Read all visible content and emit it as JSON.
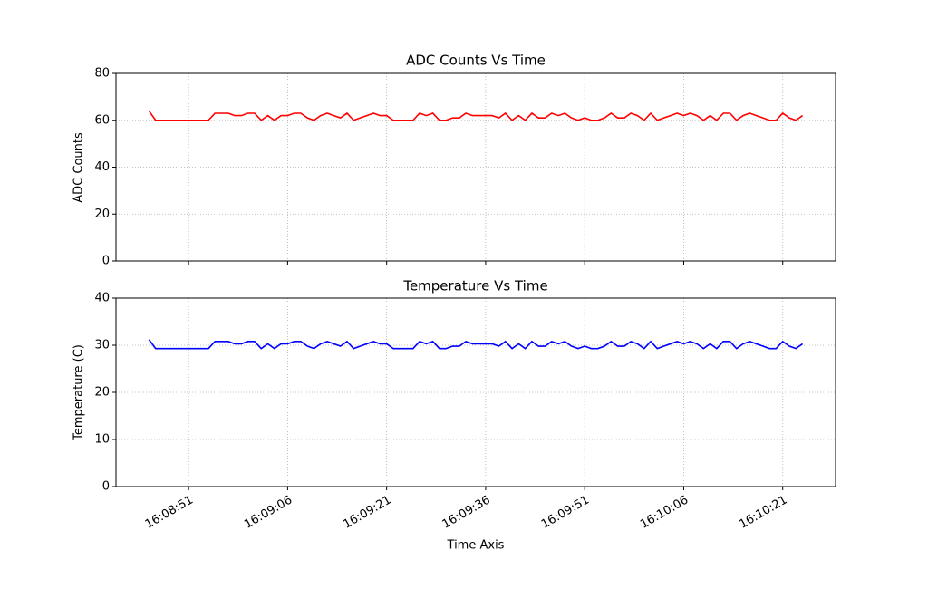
{
  "chart_data": [
    {
      "type": "line",
      "title": "ADC Counts Vs Time",
      "ylabel": "ADC Counts",
      "color": "#ff0000",
      "grid": true,
      "x": [
        "16:08:45",
        "16:08:46",
        "16:08:47",
        "16:08:48",
        "16:08:49",
        "16:08:50",
        "16:08:51",
        "16:08:52",
        "16:08:53",
        "16:08:54",
        "16:08:55",
        "16:08:56",
        "16:08:57",
        "16:08:58",
        "16:08:59",
        "16:09:00",
        "16:09:01",
        "16:09:02",
        "16:09:03",
        "16:09:04",
        "16:09:05",
        "16:09:06",
        "16:09:07",
        "16:09:08",
        "16:09:09",
        "16:09:10",
        "16:09:11",
        "16:09:12",
        "16:09:13",
        "16:09:14",
        "16:09:15",
        "16:09:16",
        "16:09:17",
        "16:09:18",
        "16:09:19",
        "16:09:20",
        "16:09:21",
        "16:09:22",
        "16:09:23",
        "16:09:24",
        "16:09:25",
        "16:09:26",
        "16:09:27",
        "16:09:28",
        "16:09:29",
        "16:09:30",
        "16:09:31",
        "16:09:32",
        "16:09:33",
        "16:09:34",
        "16:09:35",
        "16:09:36",
        "16:09:37",
        "16:09:38",
        "16:09:39",
        "16:09:40",
        "16:09:41",
        "16:09:42",
        "16:09:43",
        "16:09:44",
        "16:09:45",
        "16:09:46",
        "16:09:47",
        "16:09:48",
        "16:09:49",
        "16:09:50",
        "16:09:51",
        "16:09:52",
        "16:09:53",
        "16:09:54",
        "16:09:55",
        "16:09:56",
        "16:09:57",
        "16:09:58",
        "16:09:59",
        "16:10:00",
        "16:10:01",
        "16:10:02",
        "16:10:03",
        "16:10:04",
        "16:10:05",
        "16:10:06",
        "16:10:07",
        "16:10:08",
        "16:10:09",
        "16:10:10",
        "16:10:11",
        "16:10:12",
        "16:10:13",
        "16:10:14",
        "16:10:15",
        "16:10:16",
        "16:10:17",
        "16:10:18",
        "16:10:19",
        "16:10:20",
        "16:10:21",
        "16:10:22",
        "16:10:23",
        "16:10:24"
      ],
      "values": [
        64,
        60,
        60,
        60,
        60,
        60,
        60,
        60,
        60,
        60,
        63,
        63,
        63,
        62,
        62,
        63,
        63,
        60,
        62,
        60,
        62,
        62,
        63,
        63,
        61,
        60,
        62,
        63,
        62,
        61,
        63,
        60,
        61,
        62,
        63,
        62,
        62,
        60,
        60,
        60,
        60,
        63,
        62,
        63,
        60,
        60,
        61,
        61,
        63,
        62,
        62,
        62,
        62,
        61,
        63,
        60,
        62,
        60,
        63,
        61,
        61,
        63,
        62,
        63,
        61,
        60,
        61,
        60,
        60,
        61,
        63,
        61,
        61,
        63,
        62,
        60,
        63,
        60,
        61,
        62,
        63,
        62,
        63,
        62,
        60,
        62,
        60,
        63,
        63,
        60,
        62,
        63,
        62,
        61,
        60,
        60,
        63,
        61,
        60,
        62
      ],
      "xlim": [
        "16:08:40",
        "16:10:29"
      ],
      "xticks": [
        "16:08:51",
        "16:09:06",
        "16:09:21",
        "16:09:36",
        "16:09:51",
        "16:10:06",
        "16:10:21"
      ],
      "ylim": [
        0,
        80
      ],
      "yticks": [
        0,
        20,
        40,
        60,
        80
      ]
    },
    {
      "type": "line",
      "title": "Temperature Vs Time",
      "ylabel": "Temperature (C)",
      "xlabel": "Time Axis",
      "color": "#0000ff",
      "grid": true,
      "x": [
        "16:08:45",
        "16:08:46",
        "16:08:47",
        "16:08:48",
        "16:08:49",
        "16:08:50",
        "16:08:51",
        "16:08:52",
        "16:08:53",
        "16:08:54",
        "16:08:55",
        "16:08:56",
        "16:08:57",
        "16:08:58",
        "16:08:59",
        "16:09:00",
        "16:09:01",
        "16:09:02",
        "16:09:03",
        "16:09:04",
        "16:09:05",
        "16:09:06",
        "16:09:07",
        "16:09:08",
        "16:09:09",
        "16:09:10",
        "16:09:11",
        "16:09:12",
        "16:09:13",
        "16:09:14",
        "16:09:15",
        "16:09:16",
        "16:09:17",
        "16:09:18",
        "16:09:19",
        "16:09:20",
        "16:09:21",
        "16:09:22",
        "16:09:23",
        "16:09:24",
        "16:09:25",
        "16:09:26",
        "16:09:27",
        "16:09:28",
        "16:09:29",
        "16:09:30",
        "16:09:31",
        "16:09:32",
        "16:09:33",
        "16:09:34",
        "16:09:35",
        "16:09:36",
        "16:09:37",
        "16:09:38",
        "16:09:39",
        "16:09:40",
        "16:09:41",
        "16:09:42",
        "16:09:43",
        "16:09:44",
        "16:09:45",
        "16:09:46",
        "16:09:47",
        "16:09:48",
        "16:09:49",
        "16:09:50",
        "16:09:51",
        "16:09:52",
        "16:09:53",
        "16:09:54",
        "16:09:55",
        "16:09:56",
        "16:09:57",
        "16:09:58",
        "16:09:59",
        "16:10:00",
        "16:10:01",
        "16:10:02",
        "16:10:03",
        "16:10:04",
        "16:10:05",
        "16:10:06",
        "16:10:07",
        "16:10:08",
        "16:10:09",
        "16:10:10",
        "16:10:11",
        "16:10:12",
        "16:10:13",
        "16:10:14",
        "16:10:15",
        "16:10:16",
        "16:10:17",
        "16:10:18",
        "16:10:19",
        "16:10:20",
        "16:10:21",
        "16:10:22",
        "16:10:23",
        "16:10:24"
      ],
      "values": [
        31.2,
        29.3,
        29.3,
        29.3,
        29.3,
        29.3,
        29.3,
        29.3,
        29.3,
        29.3,
        30.8,
        30.8,
        30.8,
        30.3,
        30.3,
        30.8,
        30.8,
        29.3,
        30.3,
        29.3,
        30.3,
        30.3,
        30.8,
        30.8,
        29.8,
        29.3,
        30.3,
        30.8,
        30.3,
        29.8,
        30.8,
        29.3,
        29.8,
        30.3,
        30.8,
        30.3,
        30.3,
        29.3,
        29.3,
        29.3,
        29.3,
        30.8,
        30.3,
        30.8,
        29.3,
        29.3,
        29.8,
        29.8,
        30.8,
        30.3,
        30.3,
        30.3,
        30.3,
        29.8,
        30.8,
        29.3,
        30.3,
        29.3,
        30.8,
        29.8,
        29.8,
        30.8,
        30.3,
        30.8,
        29.8,
        29.3,
        29.8,
        29.3,
        29.3,
        29.8,
        30.8,
        29.8,
        29.8,
        30.8,
        30.3,
        29.3,
        30.8,
        29.3,
        29.8,
        30.3,
        30.8,
        30.3,
        30.8,
        30.3,
        29.3,
        30.3,
        29.3,
        30.8,
        30.8,
        29.3,
        30.3,
        30.8,
        30.3,
        29.8,
        29.3,
        29.3,
        30.8,
        29.8,
        29.3,
        30.3
      ],
      "xlim": [
        "16:08:40",
        "16:10:29"
      ],
      "xticks": [
        "16:08:51",
        "16:09:06",
        "16:09:21",
        "16:09:36",
        "16:09:51",
        "16:10:06",
        "16:10:21"
      ],
      "ylim": [
        0,
        40
      ],
      "yticks": [
        0,
        10,
        20,
        30,
        40
      ]
    }
  ]
}
